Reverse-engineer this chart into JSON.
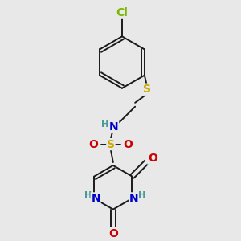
{
  "bg_color": "#e8e8e8",
  "bond_color": "#1a1a1a",
  "colors": {
    "N": "#0000cc",
    "O": "#cc0000",
    "S_thio": "#ccaa00",
    "S_sulfo": "#ccaa00",
    "Cl": "#7ab800",
    "H": "#4d9999"
  },
  "font_size": 9
}
